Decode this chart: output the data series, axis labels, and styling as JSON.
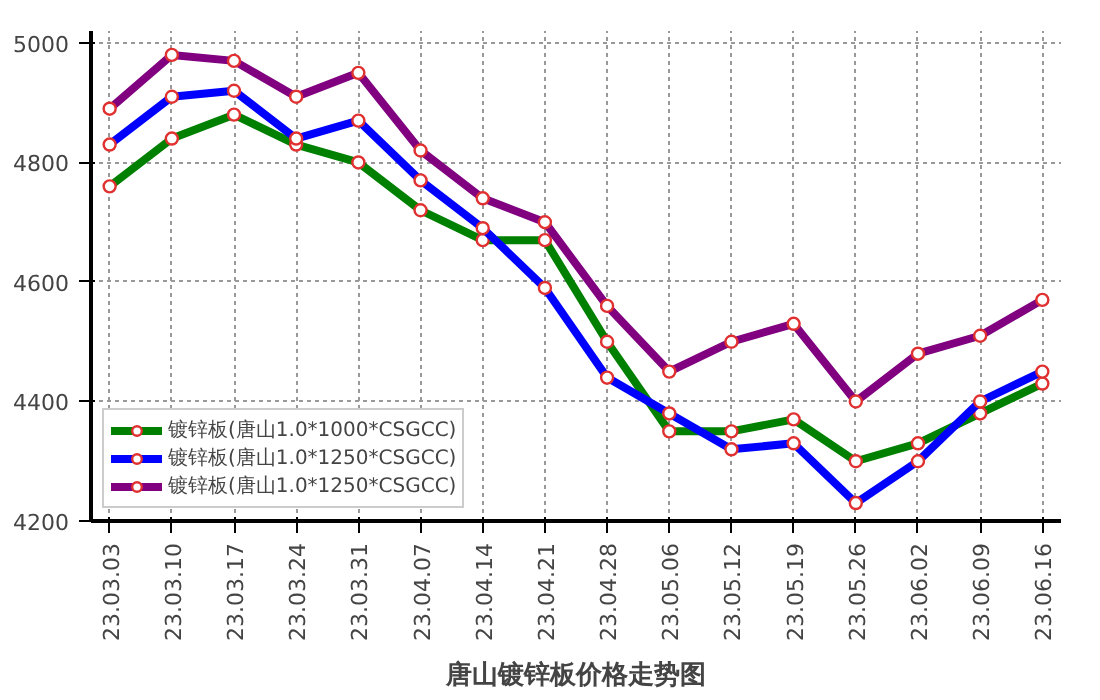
{
  "chart_data": {
    "type": "line",
    "title": "唐山镀锌板价格走势图",
    "categories": [
      "23.03.03",
      "23.03.10",
      "23.03.17",
      "23.03.24",
      "23.03.31",
      "23.04.07",
      "23.04.14",
      "23.04.21",
      "23.04.28",
      "23.05.06",
      "23.05.12",
      "23.05.19",
      "23.05.26",
      "23.06.02",
      "23.06.09",
      "23.06.16"
    ],
    "series": [
      {
        "name": "镀锌板(唐山1.0*1000*CSGCC)",
        "color": "#008000",
        "values": [
          4760,
          4840,
          4880,
          4830,
          4800,
          4720,
          4670,
          4670,
          4500,
          4350,
          4350,
          4370,
          4300,
          4330,
          4380,
          4430
        ]
      },
      {
        "name": "镀锌板(唐山1.0*1250*CSGCC)",
        "color": "#0000ff",
        "values": [
          4830,
          4910,
          4920,
          4840,
          4870,
          4770,
          4690,
          4590,
          4440,
          4380,
          4320,
          4330,
          4230,
          4300,
          4400,
          4450
        ]
      },
      {
        "name": "镀锌板(唐山1.0*1250*CSGCC)",
        "color": "#800080",
        "values": [
          4890,
          4980,
          4970,
          4910,
          4950,
          4820,
          4740,
          4700,
          4560,
          4450,
          4500,
          4530,
          4400,
          4480,
          4510,
          4570
        ]
      }
    ],
    "ylim": [
      4200,
      5020
    ],
    "yticks": [
      4200,
      4400,
      4600,
      4800,
      5000
    ],
    "grid": true,
    "legend": "bottom left",
    "marker": "circle",
    "line_style": "solid"
  }
}
